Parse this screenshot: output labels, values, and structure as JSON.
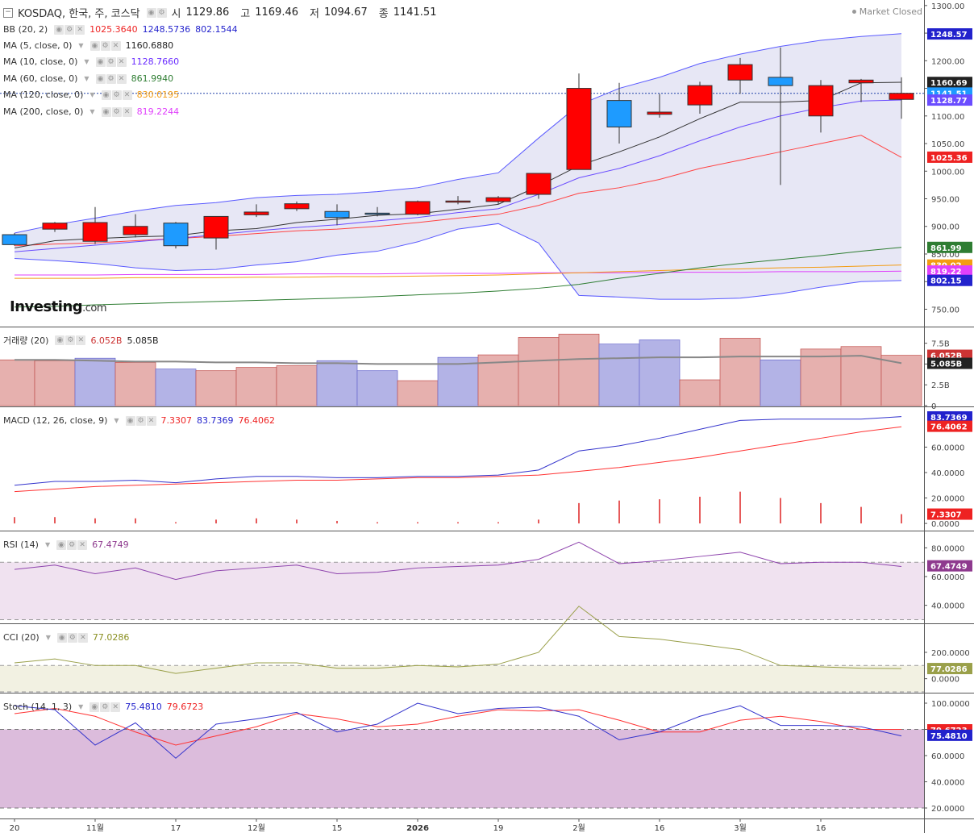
{
  "header": {
    "symbol_icon": "minus-box-icon",
    "symbol": "KOSDAQ, 한국, 주, 코스닥",
    "open_label": "시",
    "open": "1129.86",
    "high_label": "고",
    "high": "1169.46",
    "low_label": "저",
    "low": "1094.67",
    "close_label": "종",
    "close": "1141.51",
    "status": "Market Closed"
  },
  "logo": {
    "main": "Investing",
    "suffix": ".com"
  },
  "indicators": {
    "bb": {
      "label": "BB (20, 2)",
      "v1": "1025.3640",
      "v2": "1248.5736",
      "v3": "802.1544"
    },
    "ma5": {
      "label": "MA (5, close, 0)",
      "value": "1160.6880"
    },
    "ma10": {
      "label": "MA (10, close, 0)",
      "value": "1128.7660"
    },
    "ma60": {
      "label": "MA (60, close, 0)",
      "value": "861.9940"
    },
    "ma120": {
      "label": "MA (120, close, 0)",
      "value": "830.0195"
    },
    "ma200": {
      "label": "MA (200, close, 0)",
      "value": "819.2244"
    },
    "volume": {
      "label": "거래량 (20)",
      "v1": "6.052B",
      "v2": "5.085B"
    },
    "macd": {
      "label": "MACD (12, 26, close, 9)",
      "v1": "7.3307",
      "v2": "83.7369",
      "v3": "76.4062"
    },
    "rsi": {
      "label": "RSI (14)",
      "value": "67.4749"
    },
    "cci": {
      "label": "CCI (20)",
      "value": "77.0286"
    },
    "stoch": {
      "label": "Stoch (14, 1, 3)",
      "v1": "75.4810",
      "v2": "79.6723"
    }
  },
  "colors": {
    "up": "#ff0000",
    "down": "#1e9bff",
    "bb": "#5a5aff",
    "ma5": "#333333",
    "ma10": "#6a4cff",
    "ma60": "#2e7d32",
    "ma120": "#f39c12",
    "ma200": "#e040fb",
    "bb_mid": "#ff4444",
    "macd": "#3333cc",
    "signal": "#ff3333",
    "rsi": "#8e44ad",
    "cci": "#9aa04a",
    "stoch_k": "#3333cc",
    "stoch_d": "#ff3333",
    "vol_up": "#e6b0ae",
    "vol_down": "#b3b3e6"
  },
  "chart_data": {
    "type": "candlestick",
    "x_ticks": [
      "20",
      "11월",
      "17",
      "12월",
      "15",
      "2026",
      "19",
      "2월",
      "16",
      "3월",
      "16"
    ],
    "candles": [
      {
        "o": 885,
        "h": 888,
        "l": 865,
        "c": 867
      },
      {
        "o": 895,
        "h": 908,
        "l": 890,
        "c": 906
      },
      {
        "o": 873,
        "h": 935,
        "l": 868,
        "c": 907
      },
      {
        "o": 885,
        "h": 922,
        "l": 880,
        "c": 900
      },
      {
        "o": 906,
        "h": 908,
        "l": 860,
        "c": 865
      },
      {
        "o": 879,
        "h": 918,
        "l": 858,
        "c": 918
      },
      {
        "o": 921,
        "h": 940,
        "l": 917,
        "c": 926
      },
      {
        "o": 932,
        "h": 945,
        "l": 928,
        "c": 941
      },
      {
        "o": 927,
        "h": 940,
        "l": 902,
        "c": 916
      },
      {
        "o": 924,
        "h": 935,
        "l": 918,
        "c": 922
      },
      {
        "o": 922,
        "h": 947,
        "l": 920,
        "c": 945
      },
      {
        "o": 946,
        "h": 955,
        "l": 940,
        "c": 946
      },
      {
        "o": 945,
        "h": 955,
        "l": 940,
        "c": 952
      },
      {
        "o": 958,
        "h": 995,
        "l": 950,
        "c": 996
      },
      {
        "o": 1003,
        "h": 1177,
        "l": 1003,
        "c": 1150
      },
      {
        "o": 1128,
        "h": 1160,
        "l": 1050,
        "c": 1080
      },
      {
        "o": 1103,
        "h": 1140,
        "l": 1097,
        "c": 1107
      },
      {
        "o": 1120,
        "h": 1162,
        "l": 1104,
        "c": 1155
      },
      {
        "o": 1165,
        "h": 1205,
        "l": 1140,
        "c": 1193
      },
      {
        "o": 1170,
        "h": 1224,
        "l": 975,
        "c": 1155
      },
      {
        "o": 1100,
        "h": 1165,
        "l": 1070,
        "c": 1155
      },
      {
        "o": 1160,
        "h": 1167,
        "l": 1125,
        "c": 1165
      },
      {
        "o": 1130,
        "h": 1170,
        "l": 1095,
        "c": 1141
      }
    ],
    "bb_upper": [
      888,
      903,
      915,
      928,
      938,
      943,
      952,
      956,
      958,
      963,
      970,
      985,
      997,
      1060,
      1120,
      1150,
      1170,
      1195,
      1212,
      1226,
      1237,
      1244,
      1249
    ],
    "bb_mid": [
      865,
      868,
      870,
      874,
      878,
      882,
      887,
      892,
      895,
      900,
      907,
      915,
      922,
      938,
      960,
      970,
      985,
      1005,
      1020,
      1035,
      1050,
      1065,
      1025
    ],
    "bb_lower": [
      842,
      838,
      833,
      825,
      820,
      822,
      830,
      836,
      848,
      855,
      872,
      895,
      905,
      870,
      775,
      772,
      768,
      768,
      770,
      778,
      790,
      800,
      802
    ],
    "ma5": [
      861,
      874,
      878,
      881,
      883,
      892,
      896,
      907,
      913,
      920,
      923,
      931,
      940,
      973,
      1010,
      1035,
      1062,
      1095,
      1125,
      1125,
      1128,
      1160,
      1161
    ],
    "ma10": [
      854,
      860,
      866,
      872,
      878,
      885,
      892,
      898,
      903,
      910,
      916,
      925,
      932,
      958,
      988,
      1005,
      1028,
      1055,
      1080,
      1100,
      1115,
      1127,
      1129
    ],
    "ma60": [
      754,
      755,
      758,
      760,
      762,
      764,
      766,
      768,
      770,
      773,
      776,
      779,
      783,
      788,
      795,
      806,
      815,
      825,
      833,
      840,
      847,
      855,
      862
    ],
    "ma120": [
      806,
      806,
      806,
      807,
      807,
      807,
      808,
      808,
      809,
      809,
      810,
      811,
      812,
      814,
      816,
      818,
      820,
      822,
      823,
      825,
      826,
      828,
      830
    ],
    "ma200": [
      812,
      812,
      812,
      813,
      813,
      813,
      813,
      814,
      814,
      814,
      815,
      815,
      815,
      816,
      816,
      816,
      817,
      817,
      817,
      818,
      818,
      818,
      819
    ],
    "volume": [
      {
        "v": 5.5,
        "up": true
      },
      {
        "v": 5.4,
        "up": true
      },
      {
        "v": 5.7,
        "up": false
      },
      {
        "v": 5.2,
        "up": true
      },
      {
        "v": 4.4,
        "up": false
      },
      {
        "v": 4.2,
        "up": true
      },
      {
        "v": 4.6,
        "up": true
      },
      {
        "v": 4.8,
        "up": true
      },
      {
        "v": 5.4,
        "up": false
      },
      {
        "v": 4.2,
        "up": false
      },
      {
        "v": 3.0,
        "up": true
      },
      {
        "v": 5.8,
        "up": false
      },
      {
        "v": 6.1,
        "up": true
      },
      {
        "v": 8.2,
        "up": true
      },
      {
        "v": 8.6,
        "up": true
      },
      {
        "v": 7.4,
        "up": false
      },
      {
        "v": 7.9,
        "up": false
      },
      {
        "v": 3.1,
        "up": true
      },
      {
        "v": 8.1,
        "up": true
      },
      {
        "v": 5.5,
        "up": false
      },
      {
        "v": 6.8,
        "up": true
      },
      {
        "v": 7.1,
        "up": true
      },
      {
        "v": 6.05,
        "up": true
      }
    ],
    "volume_ma": [
      5.5,
      5.5,
      5.4,
      5.3,
      5.3,
      5.2,
      5.2,
      5.1,
      5.1,
      5.0,
      5.0,
      5.0,
      5.2,
      5.4,
      5.6,
      5.7,
      5.8,
      5.8,
      5.9,
      5.9,
      5.9,
      6.0,
      5.1
    ],
    "macd": [
      30,
      33,
      33,
      34,
      32,
      35,
      37,
      37,
      36,
      36,
      37,
      37,
      38,
      42,
      57,
      61,
      67,
      74,
      81,
      82,
      82,
      82,
      84
    ],
    "signal": [
      25,
      27,
      29,
      30,
      31,
      32,
      33,
      34,
      34,
      35,
      36,
      36,
      37,
      38,
      41,
      44,
      48,
      52,
      57,
      62,
      67,
      72,
      76
    ],
    "hist": [
      5,
      5,
      4,
      4,
      1,
      3,
      4,
      3,
      2,
      1,
      1,
      1,
      1,
      3,
      16,
      18,
      19,
      21,
      25,
      20,
      16,
      13,
      7.3
    ],
    "rsi": [
      65,
      68,
      62,
      66,
      58,
      64,
      66,
      68,
      62,
      63,
      66,
      67,
      68,
      72,
      84,
      69,
      71,
      74,
      77,
      69,
      70,
      70,
      67
    ],
    "cci": [
      120,
      150,
      100,
      100,
      40,
      80,
      120,
      120,
      80,
      80,
      100,
      90,
      110,
      200,
      550,
      320,
      300,
      260,
      220,
      100,
      90,
      80,
      77
    ],
    "stoch_k": [
      98,
      95,
      68,
      85,
      58,
      84,
      88,
      93,
      78,
      84,
      100,
      92,
      96,
      97,
      90,
      72,
      78,
      90,
      98,
      83,
      83,
      82,
      75
    ],
    "stoch_d": [
      92,
      96,
      90,
      78,
      68,
      75,
      82,
      92,
      88,
      82,
      84,
      90,
      95,
      94,
      95,
      87,
      78,
      78,
      87,
      90,
      86,
      80,
      80
    ],
    "y_ticks_main": [
      "1300.00",
      "1250.00",
      "1200.00",
      "1150.00",
      "1100.00",
      "1050.00",
      "1000.00",
      "950.00",
      "900.00",
      "850.00",
      "800.00",
      "750.00"
    ],
    "y_ticks_vol": [
      "7.5B",
      "5.0B",
      "2.5B",
      "0"
    ],
    "y_ticks_macd": [
      "60.0000",
      "40.0000",
      "20.0000",
      "0.0000"
    ],
    "y_ticks_rsi": [
      "80.0000",
      "60.0000",
      "40.0000"
    ],
    "y_ticks_cci": [
      "200.0000",
      "0.0000"
    ],
    "y_ticks_stoch": [
      "100.0000",
      "80.0000",
      "60.0000",
      "40.0000",
      "20.0000"
    ],
    "price_tags": [
      {
        "text": "1248.57",
        "value": 1248.57,
        "color": "#2222cc"
      },
      {
        "text": "1160.69",
        "value": 1160.69,
        "color": "#222222"
      },
      {
        "text": "1141.51",
        "value": 1141.51,
        "color": "#1e9bff"
      },
      {
        "text": "1128.77",
        "value": 1128.77,
        "color": "#6a4cff"
      },
      {
        "text": "1025.36",
        "value": 1025.36,
        "color": "#ee2222"
      },
      {
        "text": "861.99",
        "value": 861.99,
        "color": "#2e7d32"
      },
      {
        "text": "830.02",
        "value": 830.02,
        "color": "#f39c12"
      },
      {
        "text": "819.22",
        "value": 819.22,
        "color": "#e040fb"
      },
      {
        "text": "802.15",
        "value": 802.15,
        "color": "#2222cc"
      }
    ],
    "vol_tags": [
      {
        "text": "6.052B",
        "value": 6.052,
        "color": "#cc3333"
      },
      {
        "text": "5.085B",
        "value": 5.085,
        "color": "#222222"
      }
    ],
    "macd_tags": [
      {
        "text": "83.7369",
        "value": 83.7369,
        "color": "#2222cc"
      },
      {
        "text": "76.4062",
        "value": 76.4062,
        "color": "#ee2222"
      },
      {
        "text": "7.3307",
        "value": 7.3307,
        "color": "#ee2222"
      }
    ],
    "rsi_tags": [
      {
        "text": "67.4749",
        "value": 67.4749,
        "color": "#8e3a8e"
      }
    ],
    "cci_tags": [
      {
        "text": "77.0286",
        "value": 77.0286,
        "color": "#9aa04a"
      }
    ],
    "stoch_tags": [
      {
        "text": "79.6723",
        "value": 79.6723,
        "color": "#ee2222"
      },
      {
        "text": "75.4810",
        "value": 75.481,
        "color": "#2222cc"
      }
    ]
  }
}
